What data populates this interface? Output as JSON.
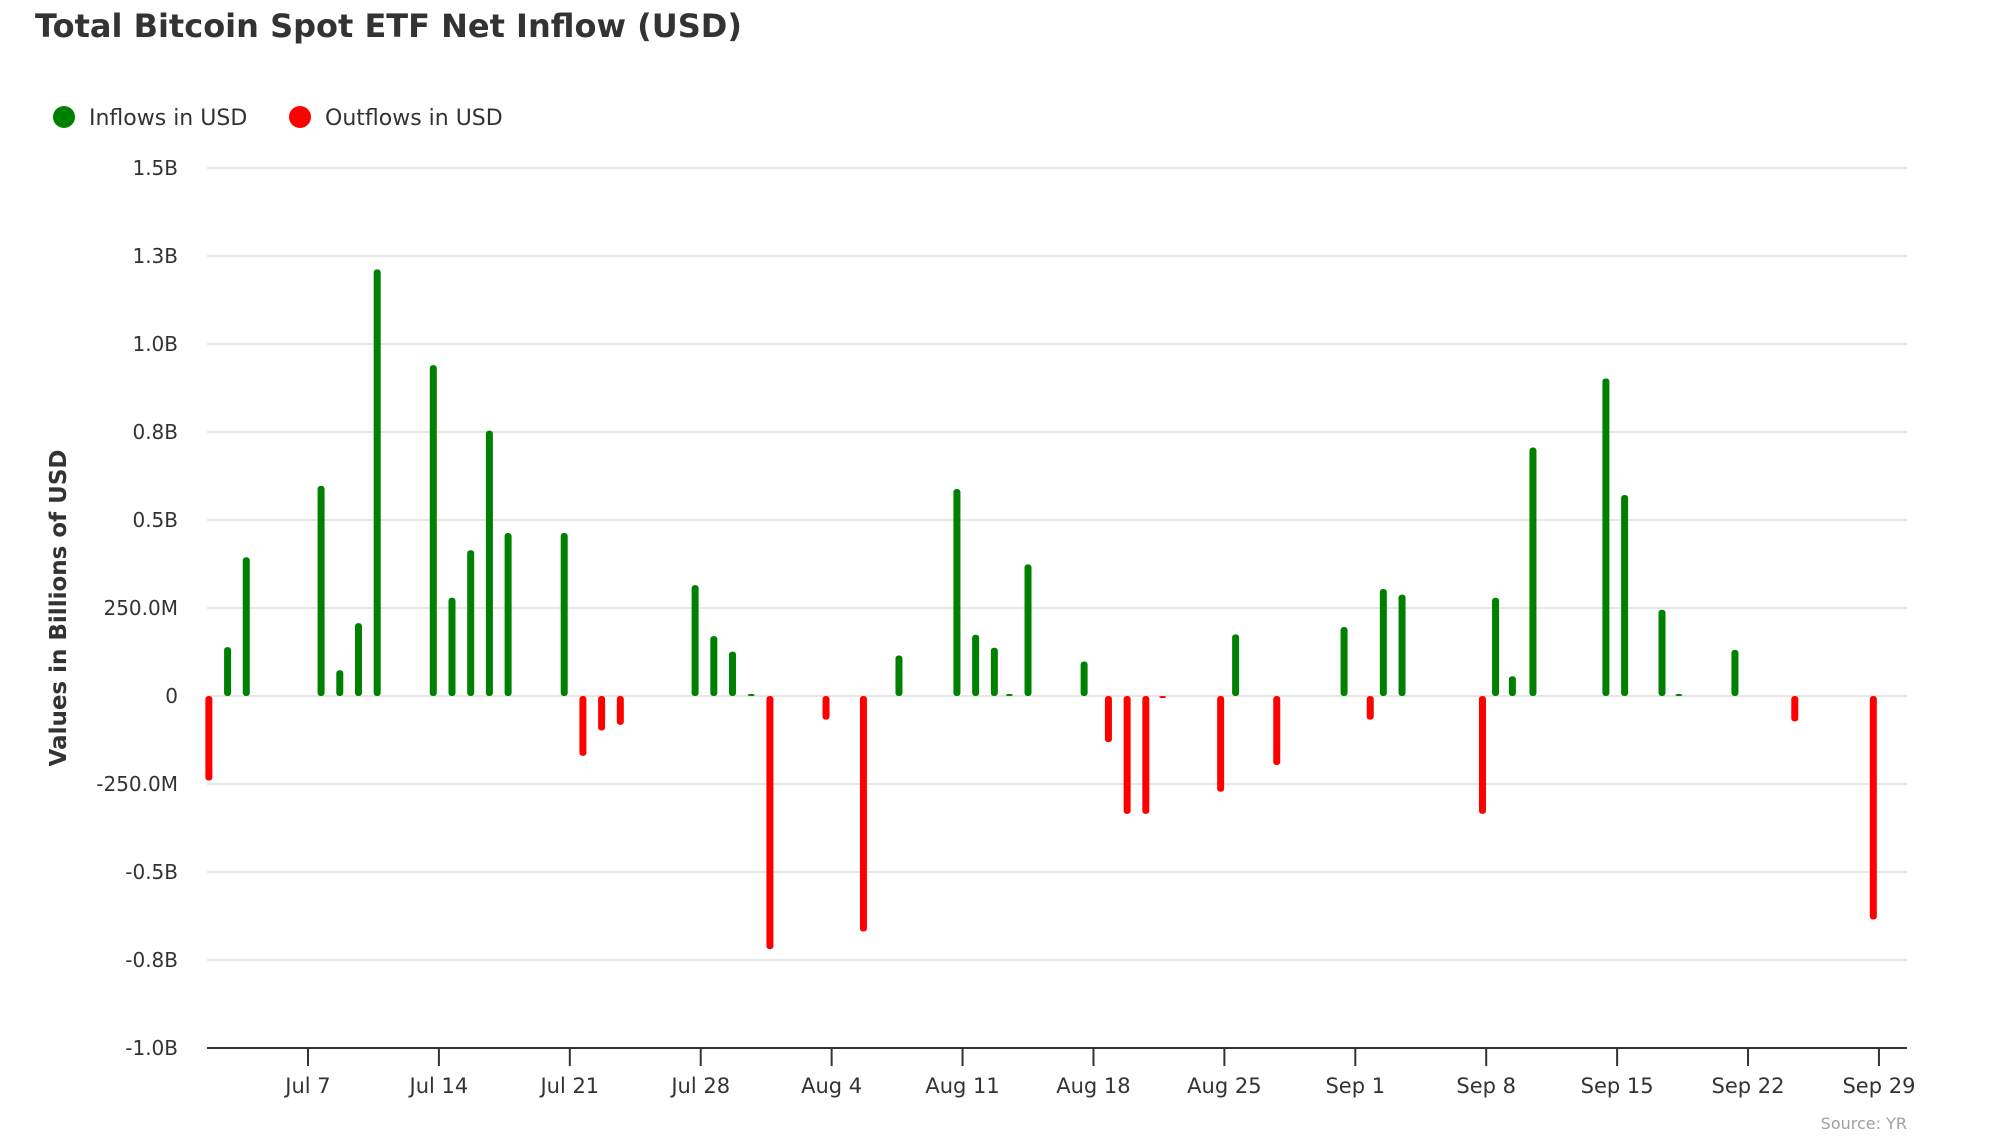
{
  "chart_data": {
    "type": "bar",
    "title": "Total Bitcoin Spot ETF Net Inflow (USD)",
    "ylabel": "Values in Billions of USD",
    "xlabel": "",
    "source": "Source: YR",
    "ylim": [
      -1.0,
      1.5
    ],
    "y_ticks": [
      {
        "value": 1.5,
        "label": "1.5B"
      },
      {
        "value": 1.25,
        "label": "1.3B"
      },
      {
        "value": 1.0,
        "label": "1.0B"
      },
      {
        "value": 0.75,
        "label": "0.8B"
      },
      {
        "value": 0.5,
        "label": "0.5B"
      },
      {
        "value": 0.25,
        "label": "250.0M"
      },
      {
        "value": 0,
        "label": "0"
      },
      {
        "value": -0.25,
        "label": "-250.0M"
      },
      {
        "value": -0.5,
        "label": "-0.5B"
      },
      {
        "value": -0.75,
        "label": "-0.8B"
      },
      {
        "value": -1.0,
        "label": "-1.0B"
      }
    ],
    "x_ticks": [
      {
        "day": 0,
        "label": "Jul 7"
      },
      {
        "day": 7,
        "label": "Jul 14"
      },
      {
        "day": 14,
        "label": "Jul 21"
      },
      {
        "day": 21,
        "label": "Jul 28"
      },
      {
        "day": 28,
        "label": "Aug 4"
      },
      {
        "day": 35,
        "label": "Aug 11"
      },
      {
        "day": 42,
        "label": "Aug 18"
      },
      {
        "day": 49,
        "label": "Aug 25"
      },
      {
        "day": 56,
        "label": "Sep 1"
      },
      {
        "day": 63,
        "label": "Sep 8"
      },
      {
        "day": 70,
        "label": "Sep 15"
      },
      {
        "day": 77,
        "label": "Sep 22"
      },
      {
        "day": 84,
        "label": "Sep 29"
      }
    ],
    "xlim_days_from_jul7": [
      -5.4,
      85.5
    ],
    "grid": true,
    "legend_position": "top-left",
    "legend": [
      {
        "name": "Inflows in USD",
        "color": "#008000"
      },
      {
        "name": "Outflows in USD",
        "color": "#ff0000"
      }
    ],
    "series_units": "billions USD",
    "points": [
      {
        "date": "Jul 2",
        "day": -5,
        "value": -0.24
      },
      {
        "date": "Jul 3",
        "day": -4,
        "value": 0.139
      },
      {
        "date": "Jul 4",
        "day": -3,
        "value": 0.394
      },
      {
        "date": "Jul 8",
        "day": 1,
        "value": 0.597
      },
      {
        "date": "Jul 9",
        "day": 2,
        "value": 0.073
      },
      {
        "date": "Jul 10",
        "day": 3,
        "value": 0.207
      },
      {
        "date": "Jul 11",
        "day": 4,
        "value": 1.212
      },
      {
        "date": "Jul 14",
        "day": 7,
        "value": 0.94
      },
      {
        "date": "Jul 15",
        "day": 8,
        "value": 0.279
      },
      {
        "date": "Jul 16",
        "day": 9,
        "value": 0.414
      },
      {
        "date": "Jul 17",
        "day": 10,
        "value": 0.754
      },
      {
        "date": "Jul 18",
        "day": 11,
        "value": 0.463
      },
      {
        "date": "Jul 21",
        "day": 14,
        "value": 0.463
      },
      {
        "date": "Jul 22",
        "day": 15,
        "value": -0.17
      },
      {
        "date": "Jul 23",
        "day": 16,
        "value": -0.098
      },
      {
        "date": "Jul 24",
        "day": 17,
        "value": -0.082
      },
      {
        "date": "Jul 28",
        "day": 21,
        "value": 0.315
      },
      {
        "date": "Jul 29",
        "day": 22,
        "value": 0.17
      },
      {
        "date": "Jul 30",
        "day": 23,
        "value": 0.126
      },
      {
        "date": "Jul 31",
        "day": 24,
        "value": 0.003
      },
      {
        "date": "Aug 1",
        "day": 25,
        "value": -0.719
      },
      {
        "date": "Aug 4",
        "day": 28,
        "value": -0.067
      },
      {
        "date": "Aug 6",
        "day": 30,
        "value": -0.669
      },
      {
        "date": "Aug 7",
        "day": 31.9,
        "value": 0.115
      },
      {
        "date": "Aug 11",
        "day": 35,
        "value": 0.588
      },
      {
        "date": "Aug 12",
        "day": 36,
        "value": 0.174
      },
      {
        "date": "Aug 13",
        "day": 37,
        "value": 0.137
      },
      {
        "date": "Aug 14",
        "day": 37.8,
        "value": 0.005
      },
      {
        "date": "Aug 15",
        "day": 38.8,
        "value": 0.374
      },
      {
        "date": "Aug 18",
        "day": 41.8,
        "value": 0.098
      },
      {
        "date": "Aug 19",
        "day": 43.1,
        "value": -0.131
      },
      {
        "date": "Aug 20",
        "day": 44.1,
        "value": -0.335
      },
      {
        "date": "Aug 21",
        "day": 45.1,
        "value": -0.335
      },
      {
        "date": "Aug 22",
        "day": 46,
        "value": -0.005
      },
      {
        "date": "Aug 25",
        "day": 49.1,
        "value": -0.272
      },
      {
        "date": "Aug 26",
        "day": 49.9,
        "value": 0.175
      },
      {
        "date": "Aug 28",
        "day": 52.1,
        "value": -0.196
      },
      {
        "date": "Sep 1",
        "day": 55.7,
        "value": 0.196
      },
      {
        "date": "Sep 2",
        "day": 57.1,
        "value": -0.067
      },
      {
        "date": "Sep 3",
        "day": 57.8,
        "value": 0.304
      },
      {
        "date": "Sep 4",
        "day": 58.8,
        "value": 0.288
      },
      {
        "date": "Sep 8",
        "day": 63.1,
        "value": -0.335
      },
      {
        "date": "Sep 9",
        "day": 63.8,
        "value": 0.279
      },
      {
        "date": "Sep 10",
        "day": 64.7,
        "value": 0.056
      },
      {
        "date": "Sep 11",
        "day": 65.8,
        "value": 0.706
      },
      {
        "date": "Sep 15",
        "day": 69.7,
        "value": 0.902
      },
      {
        "date": "Sep 16",
        "day": 70.7,
        "value": 0.571
      },
      {
        "date": "Sep 18",
        "day": 72.7,
        "value": 0.245
      },
      {
        "date": "Sep 19",
        "day": 73.6,
        "value": 0.005
      },
      {
        "date": "Sep 22",
        "day": 76.6,
        "value": 0.131
      },
      {
        "date": "Sep 25",
        "day": 79.8,
        "value": -0.072
      },
      {
        "date": "Sep 29",
        "day": 84,
        "value": -0.635
      }
    ]
  }
}
